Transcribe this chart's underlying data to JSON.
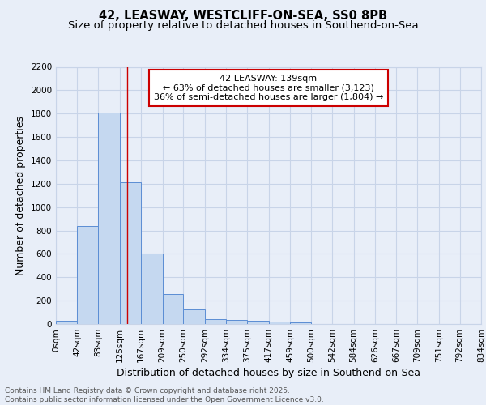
{
  "title1": "42, LEASWAY, WESTCLIFF-ON-SEA, SS0 8PB",
  "title2": "Size of property relative to detached houses in Southend-on-Sea",
  "xlabel": "Distribution of detached houses by size in Southend-on-Sea",
  "ylabel": "Number of detached properties",
  "bin_edges": [
    0,
    42,
    83,
    125,
    167,
    209,
    250,
    292,
    334,
    375,
    417,
    459,
    500,
    542,
    584,
    626,
    667,
    709,
    751,
    792,
    834
  ],
  "bar_heights": [
    25,
    840,
    1810,
    1210,
    600,
    255,
    125,
    45,
    35,
    25,
    20,
    15,
    0,
    0,
    0,
    0,
    0,
    0,
    0,
    0
  ],
  "bar_color": "#c5d8f0",
  "bar_edge_color": "#5b8dd4",
  "grid_color": "#c8d4e8",
  "background_color": "#e8eef8",
  "vline_x": 139,
  "vline_color": "#cc0000",
  "annotation_text": "42 LEASWAY: 139sqm\n← 63% of detached houses are smaller (3,123)\n36% of semi-detached houses are larger (1,804) →",
  "annotation_box_color": "#cc0000",
  "ylim": [
    0,
    2200
  ],
  "yticks": [
    0,
    200,
    400,
    600,
    800,
    1000,
    1200,
    1400,
    1600,
    1800,
    2000,
    2200
  ],
  "xtick_labels": [
    "0sqm",
    "42sqm",
    "83sqm",
    "125sqm",
    "167sqm",
    "209sqm",
    "250sqm",
    "292sqm",
    "334sqm",
    "375sqm",
    "417sqm",
    "459sqm",
    "500sqm",
    "542sqm",
    "584sqm",
    "626sqm",
    "667sqm",
    "709sqm",
    "751sqm",
    "792sqm",
    "834sqm"
  ],
  "footer_text": "Contains HM Land Registry data © Crown copyright and database right 2025.\nContains public sector information licensed under the Open Government Licence v3.0.",
  "title_fontsize": 10.5,
  "subtitle_fontsize": 9.5,
  "axis_label_fontsize": 9,
  "tick_fontsize": 7.5,
  "annotation_fontsize": 8,
  "footer_fontsize": 6.5
}
